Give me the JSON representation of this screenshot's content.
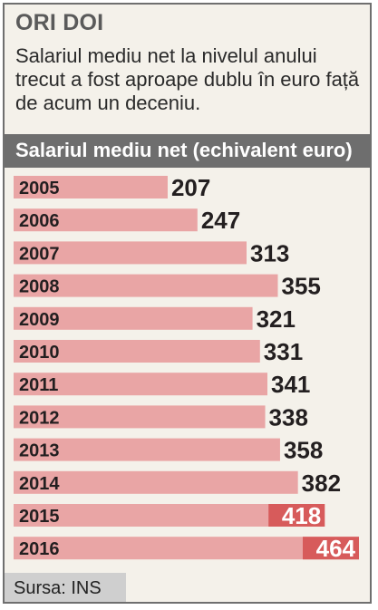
{
  "header": {
    "title": "ORI DOI",
    "subtitle": "Salariul mediu net la nivelul anului trecut a fost aproape dublu în euro față de acum un deceniu."
  },
  "chart_data": {
    "type": "bar",
    "orientation": "horizontal",
    "title": "Salariul mediu net (echivalent euro)",
    "categories": [
      "2005",
      "2006",
      "2007",
      "2008",
      "2009",
      "2010",
      "2011",
      "2012",
      "2013",
      "2014",
      "2015",
      "2016"
    ],
    "values": [
      207,
      247,
      313,
      355,
      321,
      331,
      341,
      338,
      358,
      382,
      418,
      464
    ],
    "value_labels_inside": [
      false,
      false,
      false,
      false,
      false,
      false,
      false,
      false,
      false,
      false,
      true,
      true
    ],
    "xlim": [
      0,
      464
    ]
  },
  "footer": {
    "source": "Sursa: INS"
  },
  "colors": {
    "bar": "#e9a5a5",
    "bar_highlight": "#d75b5b",
    "band": "#6e6e6e",
    "background": "#f4f1ea",
    "text": "#231f20"
  }
}
